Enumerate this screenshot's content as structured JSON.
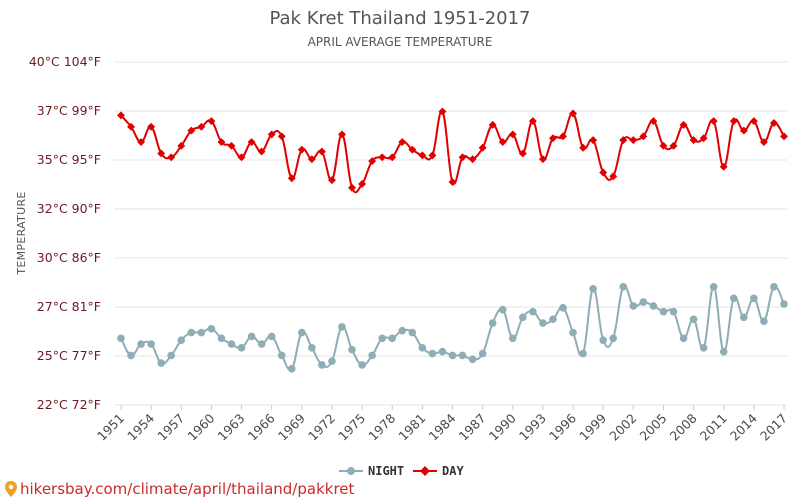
{
  "chart_data": {
    "type": "line",
    "title": "Pak Kret Thailand 1951-2017",
    "subtitle": "APRIL AVERAGE TEMPERATURE",
    "ylabel": "TEMPERATURE",
    "xlabel": "",
    "ylim": [
      22,
      40
    ],
    "ytick_labels": [
      "40°C 104°F",
      "37°C 99°F",
      "35°C 95°F",
      "32°C 90°F",
      "30°C 86°F",
      "27°C 81°F",
      "25°C 77°F",
      "22°C 72°F"
    ],
    "xtick_labels": [
      "1951",
      "1954",
      "1957",
      "1960",
      "1963",
      "1966",
      "1969",
      "1972",
      "1975",
      "1978",
      "1981",
      "1984",
      "1987",
      "1990",
      "1993",
      "1996",
      "1999",
      "2002",
      "2005",
      "2008",
      "2011",
      "2014",
      "2017"
    ],
    "xlim": [
      1951,
      2017
    ],
    "grid": true,
    "legend_position": "bottom",
    "x": [
      1951,
      1952,
      1953,
      1954,
      1955,
      1956,
      1957,
      1958,
      1959,
      1960,
      1961,
      1962,
      1963,
      1964,
      1965,
      1966,
      1967,
      1968,
      1969,
      1970,
      1971,
      1972,
      1973,
      1974,
      1975,
      1976,
      1977,
      1978,
      1979,
      1980,
      1981,
      1982,
      1983,
      1984,
      1985,
      1986,
      1987,
      1988,
      1989,
      1990,
      1991,
      1992,
      1993,
      1994,
      1995,
      1996,
      1997,
      1998,
      1999,
      2000,
      2001,
      2002,
      2003,
      2004,
      2005,
      2006,
      2007,
      2008,
      2009,
      2010,
      2011,
      2012,
      2013,
      2014,
      2015,
      2016,
      2017
    ],
    "series": [
      {
        "name": "NIGHT",
        "color": "#8fadb5",
        "values": [
          25.5,
          24.6,
          25.2,
          25.2,
          24.2,
          24.6,
          25.4,
          25.8,
          25.8,
          26.0,
          25.5,
          25.2,
          25.0,
          25.6,
          25.2,
          25.6,
          24.6,
          23.9,
          25.8,
          25.0,
          24.1,
          24.3,
          26.1,
          24.9,
          24.1,
          24.6,
          25.5,
          25.5,
          25.9,
          25.8,
          25.0,
          24.7,
          24.8,
          24.6,
          24.6,
          24.4,
          24.7,
          26.3,
          27.0,
          25.5,
          26.6,
          26.9,
          26.3,
          26.5,
          27.1,
          25.8,
          24.7,
          28.1,
          25.4,
          25.5,
          28.2,
          27.2,
          27.4,
          27.2,
          26.9,
          26.9,
          25.5,
          26.5,
          25.0,
          28.2,
          24.8,
          27.6,
          26.6,
          27.6,
          26.4,
          28.2,
          27.3
        ]
      },
      {
        "name": "DAY",
        "color": "#e00000",
        "values": [
          37.2,
          36.6,
          35.8,
          36.6,
          35.2,
          35.0,
          35.6,
          36.4,
          36.6,
          36.9,
          35.8,
          35.6,
          35.0,
          35.8,
          35.3,
          36.2,
          36.1,
          33.9,
          35.4,
          34.9,
          35.3,
          33.8,
          36.2,
          33.4,
          33.6,
          34.8,
          35.0,
          35.0,
          35.8,
          35.4,
          35.1,
          35.1,
          37.4,
          33.7,
          35.0,
          34.9,
          35.5,
          36.7,
          35.8,
          36.2,
          35.2,
          36.9,
          34.9,
          36.0,
          36.1,
          37.3,
          35.5,
          35.9,
          34.2,
          34.0,
          35.9,
          35.9,
          36.1,
          36.9,
          35.6,
          35.6,
          36.7,
          35.9,
          36.0,
          36.9,
          34.5,
          36.9,
          36.4,
          36.9,
          35.8,
          36.8,
          36.1
        ]
      }
    ]
  },
  "legend": {
    "night_label": "NIGHT",
    "day_label": "DAY"
  },
  "watermark": {
    "text": "hikersbay.com/climate/april/thailand/pakkret",
    "icon": "map-pin-icon",
    "color": "#cc2a2a"
  }
}
